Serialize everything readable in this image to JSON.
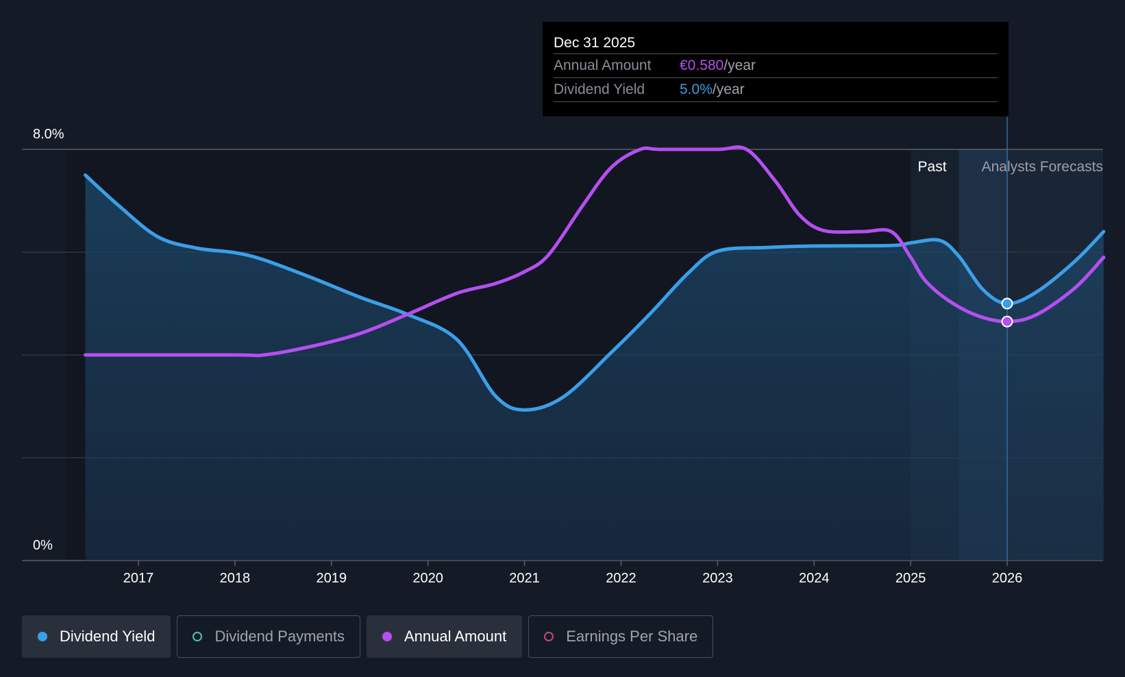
{
  "chart_data": {
    "type": "line",
    "y_axis": {
      "min_label": "0%",
      "max_label": "8.0%",
      "ylim": [
        0,
        8
      ],
      "gridlines": [
        0,
        2,
        4,
        6,
        8
      ]
    },
    "x_axis": {
      "ticks": [
        "2017",
        "2018",
        "2019",
        "2020",
        "2021",
        "2022",
        "2023",
        "2024",
        "2025",
        "2026"
      ],
      "xlim": [
        2016.2,
        2027.0
      ]
    },
    "regions": {
      "past_label": "Past",
      "forecast_label": "Analysts Forecasts",
      "past_start": 2025.0,
      "forecast_start": 2025.5,
      "marker_x": 2026.0
    },
    "series": [
      {
        "name": "Dividend Yield",
        "color": "#3b9fe8",
        "filled": true,
        "points": [
          [
            2016.45,
            7.5
          ],
          [
            2016.8,
            6.9
          ],
          [
            2017.2,
            6.3
          ],
          [
            2017.6,
            6.08
          ],
          [
            2018.0,
            5.99
          ],
          [
            2018.3,
            5.85
          ],
          [
            2018.8,
            5.5
          ],
          [
            2019.3,
            5.12
          ],
          [
            2019.8,
            4.78
          ],
          [
            2020.3,
            4.3
          ],
          [
            2020.7,
            3.2
          ],
          [
            2021.0,
            2.93
          ],
          [
            2021.4,
            3.18
          ],
          [
            2021.9,
            4.05
          ],
          [
            2022.3,
            4.8
          ],
          [
            2022.7,
            5.6
          ],
          [
            2023.0,
            6.02
          ],
          [
            2023.5,
            6.09
          ],
          [
            2024.0,
            6.12
          ],
          [
            2024.8,
            6.13
          ],
          [
            2025.0,
            6.18
          ],
          [
            2025.3,
            6.23
          ],
          [
            2025.5,
            5.92
          ],
          [
            2025.75,
            5.27
          ],
          [
            2026.0,
            5.0
          ],
          [
            2026.3,
            5.22
          ],
          [
            2026.7,
            5.82
          ],
          [
            2027.0,
            6.4
          ]
        ]
      },
      {
        "name": "Annual Amount",
        "color": "#b54ff0",
        "filled": false,
        "points": [
          [
            2016.45,
            4.0
          ],
          [
            2018.0,
            4.0
          ],
          [
            2018.3,
            4.0
          ],
          [
            2018.8,
            4.17
          ],
          [
            2019.3,
            4.42
          ],
          [
            2019.8,
            4.8
          ],
          [
            2020.3,
            5.2
          ],
          [
            2020.7,
            5.39
          ],
          [
            2021.0,
            5.62
          ],
          [
            2021.25,
            5.95
          ],
          [
            2021.6,
            6.9
          ],
          [
            2021.9,
            7.65
          ],
          [
            2022.2,
            8.0
          ],
          [
            2022.4,
            8.0
          ],
          [
            2023.0,
            8.0
          ],
          [
            2023.3,
            8.0
          ],
          [
            2023.6,
            7.38
          ],
          [
            2023.85,
            6.72
          ],
          [
            2024.1,
            6.42
          ],
          [
            2024.5,
            6.4
          ],
          [
            2024.8,
            6.4
          ],
          [
            2025.0,
            5.9
          ],
          [
            2025.15,
            5.45
          ],
          [
            2025.4,
            5.05
          ],
          [
            2025.7,
            4.76
          ],
          [
            2026.0,
            4.65
          ],
          [
            2026.3,
            4.78
          ],
          [
            2026.7,
            5.3
          ],
          [
            2027.0,
            5.9
          ]
        ]
      }
    ],
    "markers": [
      {
        "series": "Dividend Yield",
        "x": 2026.0,
        "y": 5.0,
        "color": "#3b9fe8"
      },
      {
        "series": "Annual Amount",
        "x": 2026.0,
        "y": 4.65,
        "color": "#b54ff0"
      }
    ]
  },
  "tooltip": {
    "date": "Dec 31 2025",
    "rows": [
      {
        "name": "Annual Amount",
        "value": "€0.580",
        "unit": "/year"
      },
      {
        "name": "Dividend Yield",
        "value": "5.0%",
        "unit": "/year"
      }
    ]
  },
  "legend": [
    {
      "label": "Dividend Yield",
      "active": true,
      "color": "#3b9fe8",
      "hollow": false
    },
    {
      "label": "Dividend Payments",
      "active": false,
      "color": "#4fc3b4",
      "hollow": true
    },
    {
      "label": "Annual Amount",
      "active": true,
      "color": "#b54ff0",
      "hollow": false
    },
    {
      "label": "Earnings Per Share",
      "active": false,
      "color": "#c8467a",
      "hollow": true
    }
  ]
}
